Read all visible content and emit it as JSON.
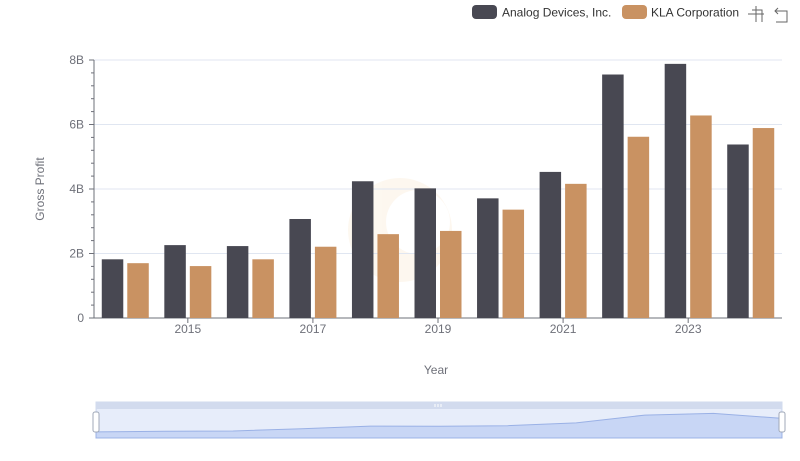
{
  "toolbar": {
    "zoom_icon": "zoom-select-icon",
    "reset_icon": "zoom-reset-icon"
  },
  "chart_data": {
    "type": "bar",
    "xlabel": "Year",
    "ylabel": "Gross Profit",
    "x": [
      2014,
      2015,
      2016,
      2017,
      2018,
      2019,
      2020,
      2021,
      2022,
      2023,
      2024
    ],
    "x_ticks": [
      "2015",
      "2017",
      "2019",
      "2021",
      "2023"
    ],
    "y_ticks": [
      "0",
      "2B",
      "4B",
      "6B",
      "8B"
    ],
    "ylim": [
      0,
      8000000000
    ],
    "legend_position": "top-right",
    "grid": true,
    "series": [
      {
        "name": "Analog Devices, Inc.",
        "color": "#484852",
        "values": [
          1820000000,
          2260000000,
          2230000000,
          3070000000,
          4240000000,
          4020000000,
          3710000000,
          4530000000,
          7550000000,
          7880000000,
          5380000000
        ]
      },
      {
        "name": "KLA Corporation",
        "color": "#c99262",
        "values": [
          1700000000,
          1610000000,
          1820000000,
          2210000000,
          2600000000,
          2700000000,
          3360000000,
          4160000000,
          5620000000,
          6280000000,
          5890000000
        ]
      }
    ]
  }
}
